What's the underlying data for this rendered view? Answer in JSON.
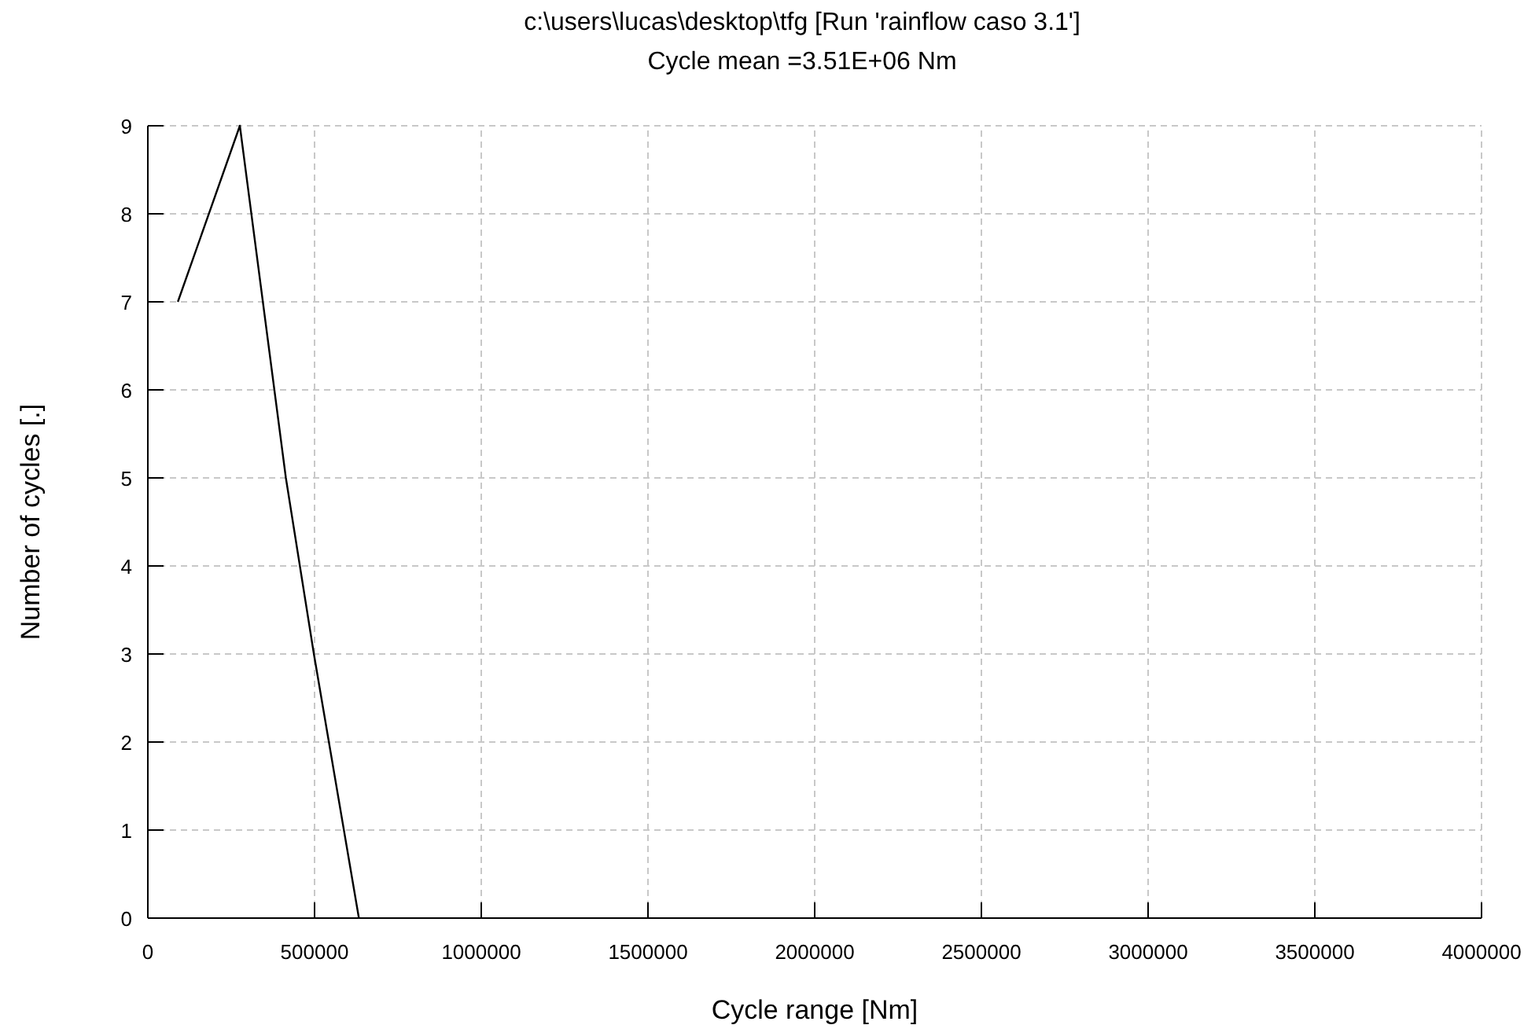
{
  "chart_data": {
    "type": "line",
    "title": "c:\\users\\lucas\\desktop\\tfg [Run 'rainflow caso 3.1']",
    "subtitle": "Cycle mean =3.51E+06 Nm",
    "xlabel": "Cycle range [Nm]",
    "ylabel": "Number of cycles  [.]",
    "x": [
      90000,
      276000,
      414000,
      498000,
      633000
    ],
    "series": [
      {
        "color": "#000000",
        "values": [
          7,
          9,
          5,
          3,
          0
        ]
      }
    ],
    "xlim": [
      0,
      4000000
    ],
    "xticks": [
      0,
      500000,
      1000000,
      1500000,
      2000000,
      2500000,
      3000000,
      3500000,
      4000000
    ],
    "ylim": [
      0,
      9
    ],
    "yticks": [
      0,
      1,
      2,
      3,
      4,
      5,
      6,
      7,
      8,
      9
    ],
    "grid": true,
    "marker": "none",
    "line_style": "solid"
  }
}
